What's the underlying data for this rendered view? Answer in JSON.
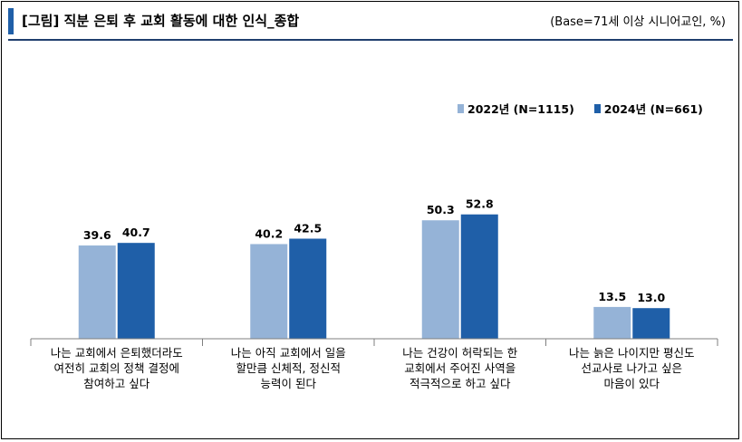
{
  "header": {
    "title": "[그림] 직분 은퇴 후 교회 활동에 대한 인식_종합",
    "base_note": "(Base=71세 이상 시니어교인, %)"
  },
  "colors": {
    "series_2022": "#95b3d7",
    "series_2024": "#1f5fa8",
    "accent": "#1f5fa8"
  },
  "chart_data": {
    "type": "bar",
    "categories": [
      "나는 교회에서 은퇴했더라도\n여전히 교회의 정책 결정에\n참여하고 싶다",
      "나는 아직 교회에서 일을\n할만큼 신체적, 정신적\n능력이 된다",
      "나는 건강이 허락되는 한\n교회에서 주어진 사역을\n적극적으로 하고 싶다",
      "나는 늙은 나이지만 평신도\n선교사로 나가고 싶은\n마음이 있다"
    ],
    "series": [
      {
        "name": "2022년 (N=1115)",
        "values": [
          39.6,
          40.2,
          50.3,
          13.5
        ]
      },
      {
        "name": "2024년 (N=661)",
        "values": [
          40.7,
          42.5,
          52.8,
          13.0
        ]
      }
    ],
    "ylim": [
      0,
      100
    ],
    "legend": "top-right",
    "grid": false
  }
}
